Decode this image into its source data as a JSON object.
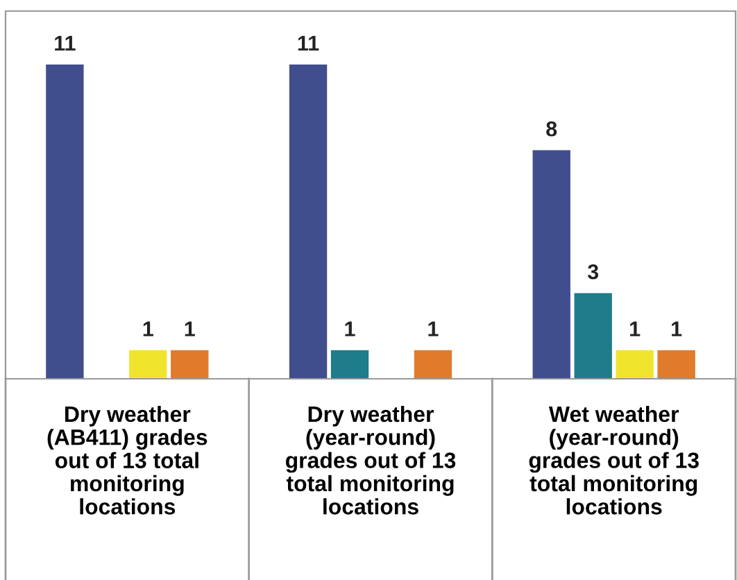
{
  "chart_data": {
    "type": "bar",
    "categories": [
      "Dry weather\n(AB411) grades\nout of 13 total\nmonitoring\nlocations",
      "Dry weather\n(year-round)\ngrades out of 13\ntotal monitoring\nlocations",
      "Wet weather\n(year-round)\ngrades out of 13\ntotal monitoring\nlocations"
    ],
    "series": [
      {
        "color": "#414e8e",
        "values": [
          11,
          11,
          8
        ]
      },
      {
        "color": "#1f7c89",
        "values": [
          null,
          1,
          3
        ]
      },
      {
        "color": "#f1e42c",
        "values": [
          1,
          null,
          1
        ]
      },
      {
        "color": "#e07b2c",
        "values": [
          1,
          1,
          1
        ]
      }
    ],
    "data_labels": true,
    "grid": false,
    "legend": false
  }
}
